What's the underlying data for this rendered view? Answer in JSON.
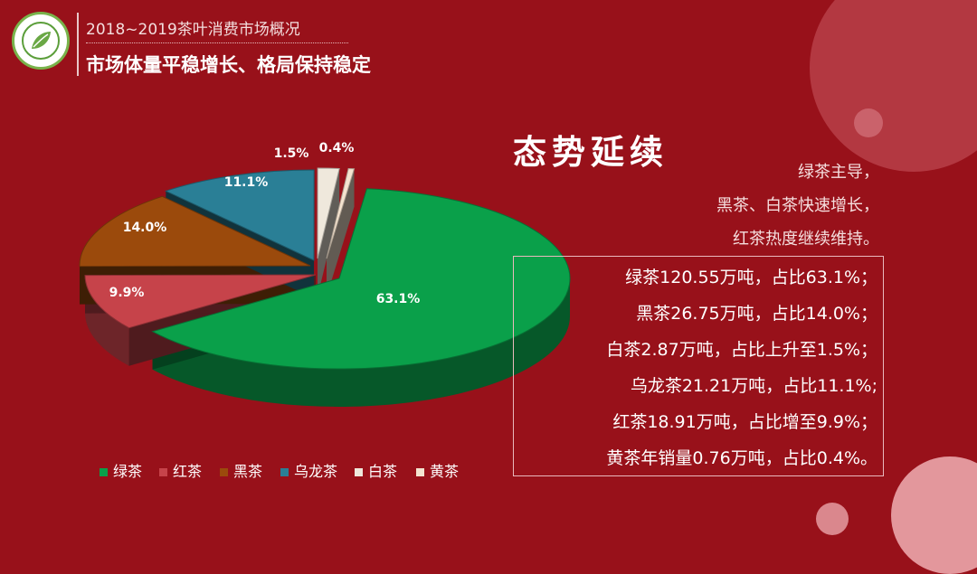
{
  "header": {
    "subtitle": "2018~2019茶叶消费市场概况",
    "title": "市场体量平稳增长、格局保持稳定"
  },
  "headline": "态势延续",
  "summary": [
    "绿茶主导，",
    "黑茶、白茶快速增长，",
    "红茶热度继续维持。"
  ],
  "details": [
    "绿茶120.55万吨，占比63.1%；",
    "黑茶26.75万吨，占比14.0%；",
    "白茶2.87万吨，占比上升至1.5%；",
    "乌龙茶21.21万吨，占比11.1%;",
    "红茶18.91万吨，占比增至9.9%；",
    "黄茶年销量0.76万吨，占比0.4%。"
  ],
  "chart_data": {
    "type": "pie",
    "title": "",
    "legend_position": "bottom",
    "slices": [
      {
        "name": "绿茶",
        "value": 63.1,
        "label": "63.1%",
        "color": "#0aa04a"
      },
      {
        "name": "红茶",
        "value": 9.9,
        "label": "9.9%",
        "color": "#c6434a"
      },
      {
        "name": "黑茶",
        "value": 14.0,
        "label": "14.0%",
        "color": "#9b4a0c"
      },
      {
        "name": "乌龙茶",
        "value": 11.1,
        "label": "11.1%",
        "color": "#2a7f96"
      },
      {
        "name": "白茶",
        "value": 1.5,
        "label": "1.5%",
        "color": "#efe8dc"
      },
      {
        "name": "黄茶",
        "value": 0.4,
        "label": "0.4%",
        "color": "#f4e3cf"
      }
    ]
  },
  "colors": {
    "background": "#98111a"
  }
}
